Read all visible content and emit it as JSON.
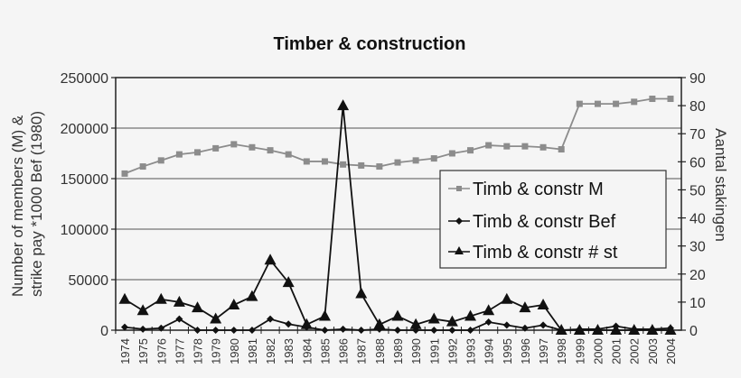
{
  "chart_data": {
    "type": "line",
    "title": "Timber & construction",
    "xlabel": "",
    "ylabel": "Number of members (M) & strike pay *1000 Bef (1980)",
    "ylabel_lines": [
      "Number of members (M) &",
      "strike pay *1000 Bef (1980)"
    ],
    "y2label": "Aantal stakingen",
    "ylim": [
      0,
      250000
    ],
    "y2lim": [
      0,
      90
    ],
    "yticks": [
      0,
      50000,
      100000,
      150000,
      200000,
      250000
    ],
    "y2ticks": [
      0,
      10,
      20,
      30,
      40,
      50,
      60,
      70,
      80,
      90
    ],
    "grid": true,
    "legend_position": "right-middle",
    "categories": [
      "1974",
      "1975",
      "1976",
      "1977",
      "1978",
      "1979",
      "1980",
      "1981",
      "1982",
      "1983",
      "1984",
      "1985",
      "1986",
      "1987",
      "1988",
      "1989",
      "1990",
      "1991",
      "1992",
      "1993",
      "1994",
      "1995",
      "1996",
      "1997",
      "1998",
      "1999",
      "2000",
      "2001",
      "2002",
      "2003",
      "2004"
    ],
    "series": [
      {
        "name": "Timb & constr M",
        "axis": "left",
        "marker": "square",
        "color": "#8c8c8c",
        "values": [
          155000,
          162000,
          168000,
          174000,
          176000,
          180000,
          184000,
          181000,
          178000,
          174000,
          167000,
          167000,
          164000,
          163000,
          162000,
          166000,
          168000,
          170000,
          175000,
          178000,
          183000,
          182000,
          182000,
          181000,
          179000,
          224000,
          224000,
          224000,
          226000,
          229000,
          229000
        ]
      },
      {
        "name": "Timb & constr Bef",
        "axis": "left",
        "marker": "diamond",
        "color": "#111111",
        "values": [
          3000,
          1000,
          2000,
          11000,
          0,
          0,
          0,
          0,
          11000,
          6000,
          3000,
          0,
          1000,
          0,
          1000,
          0,
          0,
          0,
          0,
          0,
          8000,
          5000,
          2000,
          5000,
          0,
          1000,
          1000,
          4000,
          1000,
          1000,
          2000
        ]
      },
      {
        "name": "Timb & constr # st",
        "axis": "right",
        "marker": "triangle",
        "color": "#111111",
        "values": [
          11,
          7,
          11,
          10,
          8,
          4,
          9,
          12,
          25,
          17,
          2,
          5,
          80,
          13,
          2,
          5,
          2,
          4,
          3,
          5,
          7,
          11,
          8,
          9,
          0,
          0,
          0,
          0,
          0,
          0,
          0
        ]
      }
    ]
  }
}
